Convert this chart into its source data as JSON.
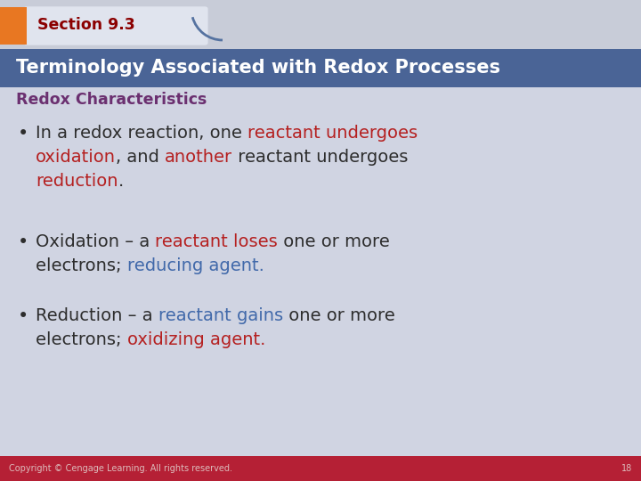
{
  "section_label": "Section 9.3",
  "title": "Terminology Associated with Redox Processes",
  "subtitle": "Redox Characteristics",
  "bg_color": "#d0d4e2",
  "header_bg": "#4a6496",
  "section_tab_bg": "#e87722",
  "section_tab_text_color": "#8b0000",
  "title_text_color": "#ffffff",
  "subtitle_color": "#6b3070",
  "footer_bg": "#b52035",
  "footer_text": "Copyright © Cengage Learning. All rights reserved.",
  "footer_page": "18",
  "body_text_color": "#2d2d2d",
  "red_color": "#b52020",
  "blue_color": "#4169aa",
  "fs_body": 14,
  "fs_title": 15,
  "fs_section": 12.5,
  "fs_subtitle": 12.5,
  "fs_footer": 7,
  "bullet1": [
    [
      {
        "text": "In a redox reaction, one ",
        "color": "#2d2d2d"
      },
      {
        "text": "reactant undergoes",
        "color": "#b52020"
      }
    ],
    [
      {
        "text": "oxidation",
        "color": "#b52020"
      },
      {
        "text": ", and ",
        "color": "#2d2d2d"
      },
      {
        "text": "another",
        "color": "#b52020"
      },
      {
        "text": " reactant undergoes",
        "color": "#2d2d2d"
      }
    ],
    [
      {
        "text": "reduction",
        "color": "#b52020"
      },
      {
        "text": ".",
        "color": "#2d2d2d"
      }
    ]
  ],
  "bullet2": [
    [
      {
        "text": "Oxidation – a ",
        "color": "#2d2d2d"
      },
      {
        "text": "reactant loses",
        "color": "#b52020"
      },
      {
        "text": " one or more",
        "color": "#2d2d2d"
      }
    ],
    [
      {
        "text": "electrons; ",
        "color": "#2d2d2d"
      },
      {
        "text": "reducing agent.",
        "color": "#4169aa"
      }
    ]
  ],
  "bullet3": [
    [
      {
        "text": "Reduction – a ",
        "color": "#2d2d2d"
      },
      {
        "text": "reactant gains",
        "color": "#4169aa"
      },
      {
        "text": " one or more",
        "color": "#2d2d2d"
      }
    ],
    [
      {
        "text": "electrons; ",
        "color": "#2d2d2d"
      },
      {
        "text": "oxidizing agent.",
        "color": "#b52020"
      }
    ]
  ]
}
